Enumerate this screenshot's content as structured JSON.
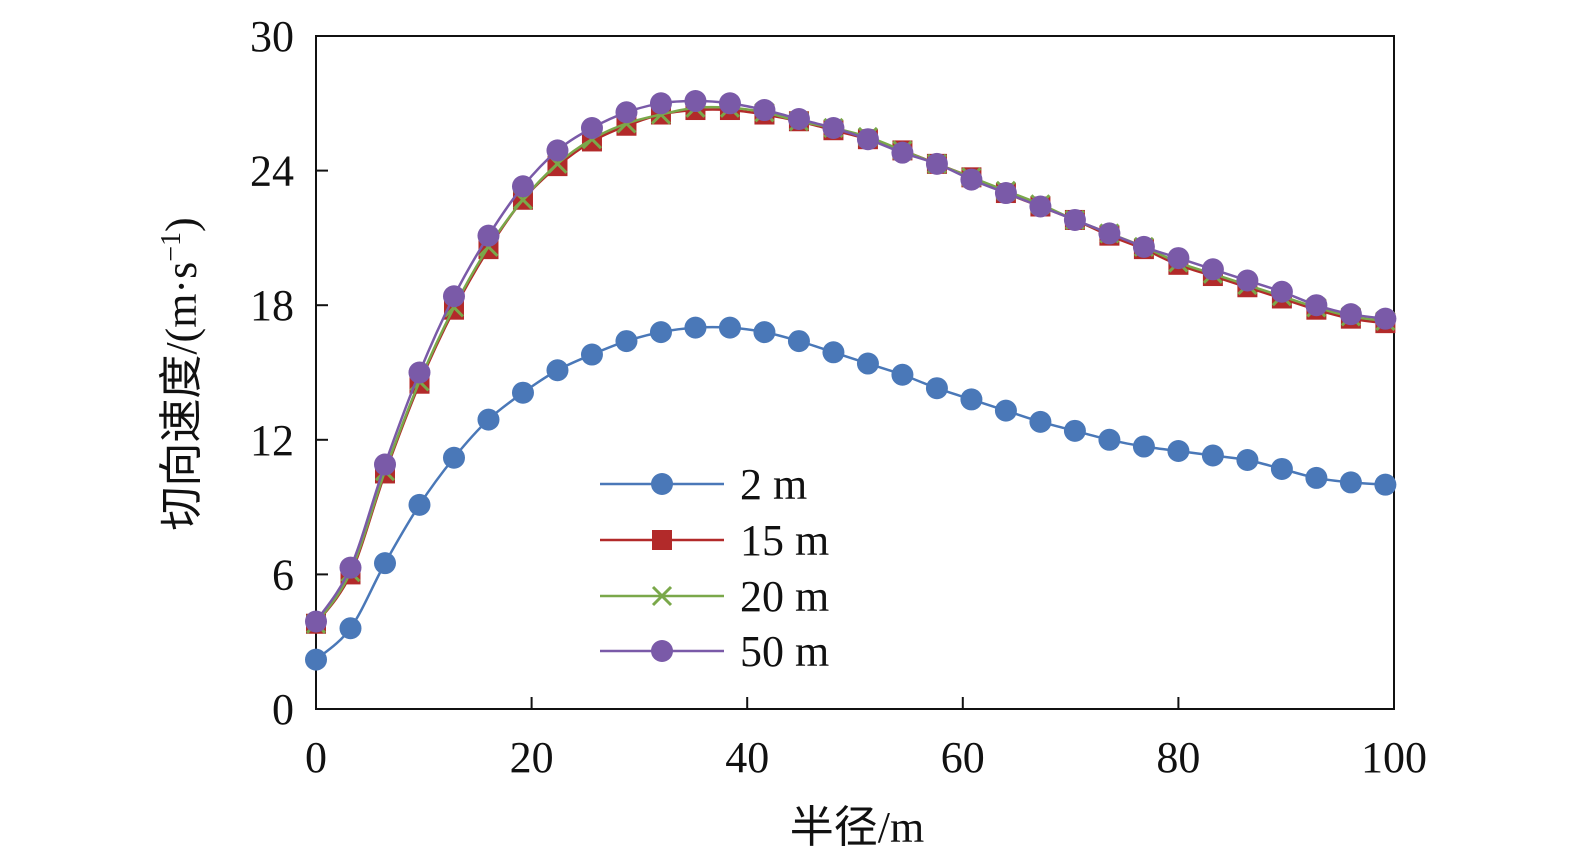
{
  "chart_data": {
    "type": "line",
    "title": "",
    "xlabel": "半径/m",
    "ylabel": "切向速度/(m·s",
    "ylabel_superscript": "−1",
    "ylabel_close": ")",
    "xlim": [
      0,
      100
    ],
    "ylim": [
      0,
      30
    ],
    "xticks": [
      0,
      20,
      40,
      60,
      80,
      100
    ],
    "yticks": [
      0,
      6,
      12,
      18,
      24,
      30
    ],
    "grid": false,
    "legend_position": "lower-center",
    "x": [
      0,
      3.2,
      6.4,
      9.6,
      12.8,
      16,
      19.2,
      22.4,
      25.6,
      28.8,
      32,
      35.2,
      38.4,
      41.6,
      44.8,
      48,
      51.2,
      54.4,
      57.6,
      60.8,
      64,
      67.2,
      70.4,
      73.6,
      76.8,
      80,
      83.2,
      86.4,
      89.6,
      92.8,
      96,
      99.2
    ],
    "series": [
      {
        "name": "2 m",
        "color": "#4a78b8",
        "marker": "circle",
        "values": [
          2.2,
          3.6,
          6.5,
          9.1,
          11.2,
          12.9,
          14.1,
          15.1,
          15.8,
          16.4,
          16.8,
          17.0,
          17.0,
          16.8,
          16.4,
          15.9,
          15.4,
          14.9,
          14.3,
          13.8,
          13.3,
          12.8,
          12.4,
          12.0,
          11.7,
          11.5,
          11.3,
          11.1,
          10.7,
          10.3,
          10.1,
          10.0
        ]
      },
      {
        "name": "15 m",
        "color": "#b22a2a",
        "marker": "square",
        "values": [
          3.8,
          6.0,
          10.5,
          14.5,
          17.8,
          20.5,
          22.7,
          24.2,
          25.3,
          26.0,
          26.5,
          26.7,
          26.7,
          26.5,
          26.2,
          25.8,
          25.4,
          24.9,
          24.3,
          23.7,
          23.0,
          22.4,
          21.8,
          21.1,
          20.5,
          19.8,
          19.3,
          18.8,
          18.3,
          17.8,
          17.4,
          17.2
        ]
      },
      {
        "name": "20 m",
        "color": "#7aa84a",
        "marker": "x",
        "values": [
          3.8,
          6.1,
          10.6,
          14.6,
          17.9,
          20.6,
          22.7,
          24.3,
          25.4,
          26.1,
          26.5,
          26.8,
          26.8,
          26.6,
          26.2,
          25.9,
          25.5,
          24.9,
          24.3,
          23.7,
          23.1,
          22.5,
          21.8,
          21.2,
          20.6,
          19.9,
          19.4,
          18.9,
          18.4,
          17.9,
          17.5,
          17.3
        ]
      },
      {
        "name": "50 m",
        "color": "#7a5aa8",
        "marker": "circle",
        "values": [
          3.9,
          6.3,
          10.9,
          15.0,
          18.4,
          21.1,
          23.3,
          24.9,
          25.9,
          26.6,
          27.0,
          27.1,
          27.0,
          26.7,
          26.3,
          25.9,
          25.4,
          24.8,
          24.3,
          23.6,
          23.0,
          22.4,
          21.8,
          21.2,
          20.6,
          20.1,
          19.6,
          19.1,
          18.6,
          18.0,
          17.6,
          17.4
        ]
      }
    ]
  }
}
